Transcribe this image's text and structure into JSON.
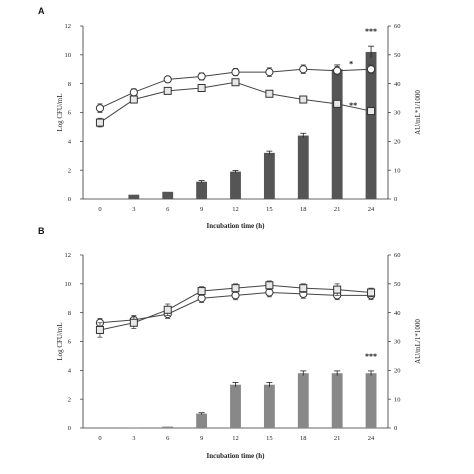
{
  "chart_data": [
    {
      "panel": "A",
      "type": "bar",
      "x_ticks": [
        "0",
        "3",
        "6",
        "9",
        "12",
        "15",
        "18",
        "21",
        "24"
      ],
      "xlabel": "Incubation time (h)",
      "ylabel_left": "Log CFU/mL",
      "ylabel_right": "AU/mL*1/1000",
      "ylim_left": [
        0,
        12
      ],
      "yticks_left": [
        "0",
        "2",
        "4",
        "6",
        "8",
        "10",
        "12"
      ],
      "ylim_right": [
        0,
        60
      ],
      "yticks_right": [
        "0",
        "10",
        "20",
        "30",
        "40",
        "50",
        "60"
      ],
      "bar_color": "#555555",
      "bars": {
        "axis": "right",
        "values": [
          0,
          1.5,
          2.5,
          6,
          9.5,
          16,
          22,
          45,
          51
        ],
        "errors": [
          0,
          0,
          0,
          0.4,
          0.4,
          0.6,
          0.8,
          1.5,
          2.0
        ]
      },
      "series": [
        {
          "marker": "circle",
          "axis": "left",
          "values": [
            6.3,
            7.4,
            8.3,
            8.5,
            8.8,
            8.8,
            9.0,
            8.9,
            9.0
          ],
          "errors": [
            0.3,
            0.25,
            0.2,
            0.25,
            0.25,
            0.3,
            0.3,
            0.3,
            0.3
          ]
        },
        {
          "marker": "square",
          "axis": "left",
          "values": [
            5.3,
            6.9,
            7.5,
            7.7,
            8.1,
            7.3,
            6.9,
            6.6,
            6.1
          ],
          "errors": [
            0.3,
            0.25,
            0.2,
            0.2,
            0.2,
            0.2,
            0.2,
            0.2,
            0.2
          ]
        }
      ],
      "annotations": [
        {
          "text": "*",
          "x": "21"
        },
        {
          "text": "**",
          "x": "21"
        },
        {
          "text": "***",
          "x": "24"
        }
      ]
    },
    {
      "panel": "B",
      "type": "bar",
      "x_ticks": [
        "0",
        "3",
        "6",
        "9",
        "12",
        "15",
        "18",
        "21",
        "24"
      ],
      "xlabel": "Incubation  time (h)",
      "ylabel_left": "Log CFU/mL",
      "ylabel_right": "AU/mL/1*1000",
      "ylim_left": [
        0,
        12
      ],
      "yticks_left": [
        "0",
        "2",
        "4",
        "6",
        "8",
        "10",
        "12"
      ],
      "ylim_right": [
        0,
        60
      ],
      "yticks_right": [
        "0",
        "10",
        "20",
        "30",
        "40",
        "50",
        "60"
      ],
      "bar_color": "#888888",
      "bars": {
        "axis": "right",
        "values": [
          0,
          0.2,
          0.5,
          5,
          15,
          15,
          19,
          19,
          19
        ],
        "errors": [
          0,
          0,
          0,
          0.3,
          0.8,
          0.8,
          0.8,
          0.8,
          0.8
        ]
      },
      "series": [
        {
          "marker": "circle",
          "axis": "left",
          "values": [
            7.3,
            7.5,
            7.9,
            9.0,
            9.2,
            9.4,
            9.3,
            9.2,
            9.2
          ],
          "errors": [
            0.3,
            0.3,
            0.3,
            0.3,
            0.3,
            0.3,
            0.3,
            0.3,
            0.3
          ]
        },
        {
          "marker": "square",
          "axis": "left",
          "values": [
            6.8,
            7.3,
            8.2,
            9.5,
            9.7,
            9.9,
            9.7,
            9.6,
            9.4
          ],
          "errors": [
            0.5,
            0.4,
            0.4,
            0.3,
            0.3,
            0.3,
            0.3,
            0.4,
            0.3
          ]
        }
      ],
      "annotations": [
        {
          "text": "***",
          "x": "24"
        }
      ]
    }
  ]
}
